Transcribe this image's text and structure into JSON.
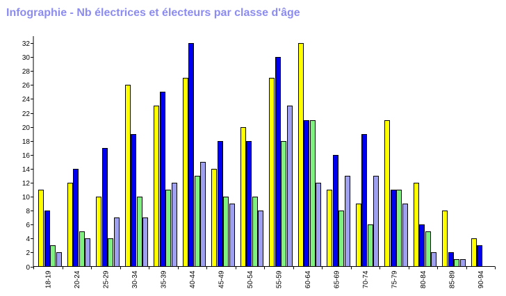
{
  "chart_data": {
    "type": "bar",
    "title": "Infographie - Nb électrices et électeurs par classe d'âge",
    "categories": [
      "18-19",
      "20-24",
      "25-29",
      "30-34",
      "35-39",
      "40-44",
      "45-49",
      "50-54",
      "55-59",
      "60-64",
      "65-69",
      "70-74",
      "75-79",
      "80-84",
      "85-89",
      "90-94"
    ],
    "series": [
      {
        "color": "#ffff00",
        "values": [
          11,
          12,
          10,
          26,
          23,
          27,
          14,
          20,
          27,
          32,
          11,
          9,
          21,
          12,
          8,
          4
        ]
      },
      {
        "color": "#0000ee",
        "values": [
          8,
          14,
          17,
          19,
          25,
          32,
          18,
          18,
          30,
          21,
          16,
          19,
          11,
          6,
          2,
          3
        ]
      },
      {
        "color": "#80f080",
        "values": [
          3,
          5,
          4,
          10,
          11,
          13,
          10,
          10,
          18,
          21,
          8,
          6,
          11,
          5,
          1,
          0
        ]
      },
      {
        "color": "#a0a0f0",
        "values": [
          2,
          4,
          7,
          7,
          12,
          15,
          9,
          8,
          23,
          12,
          13,
          13,
          9,
          2,
          1,
          0
        ]
      }
    ],
    "ylim": [
      0,
      33
    ],
    "yticks": [
      0,
      2,
      4,
      6,
      8,
      10,
      12,
      14,
      16,
      18,
      20,
      22,
      24,
      26,
      28,
      30,
      32
    ],
    "grid": false
  }
}
